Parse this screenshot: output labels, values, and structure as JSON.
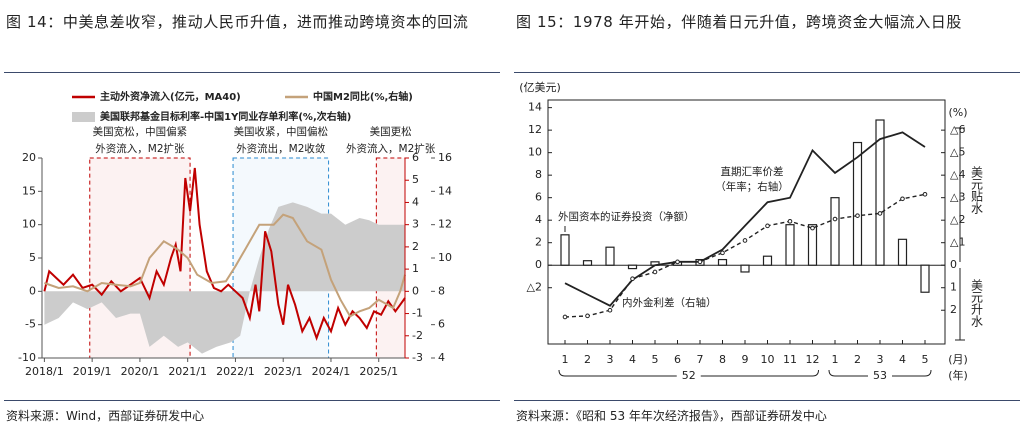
{
  "chart_data": [
    {
      "type": "line",
      "title": "图 14：中美息差收窄，推动人民币升值，进而推动跨境资本的回流",
      "source": "资料来源：Wind，西部证券研发中心",
      "xlim": [
        2017.95,
        2025.55
      ],
      "xticks": [
        {
          "value": 2018,
          "label": "2018/1"
        },
        {
          "value": 2019,
          "label": "2019/1"
        },
        {
          "value": 2020,
          "label": "2020/1"
        },
        {
          "value": 2021,
          "label": "2021/1"
        },
        {
          "value": 2022,
          "label": "2022/1"
        },
        {
          "value": 2023,
          "label": "2023/1"
        },
        {
          "value": 2024,
          "label": "2024/1"
        },
        {
          "value": 2025,
          "label": "2025/1"
        }
      ],
      "ylim": [
        -10,
        20
      ],
      "yticks": [
        -10,
        -5,
        0,
        5,
        10,
        15,
        20
      ],
      "y2lim": [
        4,
        16
      ],
      "y2ticks": [
        4,
        6,
        8,
        10,
        12,
        14,
        16
      ],
      "y3lim": [
        -3,
        6
      ],
      "y3ticks": [
        -3,
        -2,
        -1,
        0,
        1,
        2,
        3,
        4,
        5,
        6
      ],
      "series": [
        {
          "name": "主动外资净流入(亿元，MA40)",
          "color": "#c00000",
          "x": [
            2018.0,
            2018.1,
            2018.25,
            2018.4,
            2018.6,
            2018.8,
            2019.0,
            2019.2,
            2019.4,
            2019.6,
            2019.8,
            2020.0,
            2020.2,
            2020.35,
            2020.5,
            2020.65,
            2020.75,
            2020.85,
            2020.95,
            2021.05,
            2021.15,
            2021.25,
            2021.4,
            2021.55,
            2021.7,
            2021.85,
            2022.0,
            2022.15,
            2022.3,
            2022.42,
            2022.5,
            2022.62,
            2022.75,
            2022.9,
            2023.0,
            2023.1,
            2023.25,
            2023.4,
            2023.55,
            2023.7,
            2023.85,
            2024.0,
            2024.15,
            2024.3,
            2024.45,
            2024.6,
            2024.75,
            2024.9,
            2025.05,
            2025.2,
            2025.35,
            2025.45,
            2025.55
          ],
          "values": [
            0,
            3,
            2,
            1,
            2.5,
            0.5,
            1,
            -0.5,
            1.5,
            0,
            1,
            2,
            -1,
            3,
            1,
            5,
            7,
            3,
            17,
            12,
            18.5,
            10,
            3,
            0.5,
            0,
            1,
            0,
            -1,
            -4,
            1,
            -3,
            9,
            6,
            -2,
            -5,
            1,
            -2,
            -6,
            -4,
            -7,
            -4,
            -6,
            -2.5,
            -5,
            -3,
            -4,
            -5.5,
            -3,
            -3.5,
            -1.5,
            -3,
            -2,
            -1
          ]
        },
        {
          "name": "中国M2同比(%,右轴)",
          "color": "#c4a27a",
          "axis": "y2",
          "x": [
            2018.0,
            2018.3,
            2018.6,
            2018.9,
            2019.2,
            2019.5,
            2019.8,
            2020.0,
            2020.2,
            2020.5,
            2020.8,
            2021.0,
            2021.2,
            2021.5,
            2021.8,
            2022.0,
            2022.2,
            2022.5,
            2022.8,
            2023.0,
            2023.2,
            2023.5,
            2023.8,
            2024.0,
            2024.2,
            2024.4,
            2024.6,
            2024.8,
            2025.0,
            2025.3,
            2025.45,
            2025.55
          ],
          "values": [
            8.5,
            8.2,
            8.3,
            8.0,
            8.5,
            8.4,
            8.3,
            8.5,
            10,
            11,
            10.5,
            10,
            9,
            8.5,
            8.6,
            9.5,
            10.5,
            12,
            12,
            12.6,
            12.4,
            11,
            10.5,
            8.7,
            7.5,
            6.5,
            6.8,
            7.0,
            7.5,
            7.0,
            8.0,
            9.0
          ]
        },
        {
          "name": "美国联邦基金目标利率-中国1Y同业存单利率(%,次右轴)",
          "color": "#cccccc",
          "axis": "y3",
          "type": "area",
          "x": [
            2018.0,
            2018.3,
            2018.6,
            2018.9,
            2019.2,
            2019.5,
            2019.8,
            2020.0,
            2020.2,
            2020.5,
            2020.8,
            2021.0,
            2021.3,
            2021.6,
            2021.9,
            2022.1,
            2022.3,
            2022.5,
            2022.7,
            2022.9,
            2023.2,
            2023.5,
            2023.8,
            2024.0,
            2024.3,
            2024.6,
            2024.8,
            2025.0,
            2025.3,
            2025.55
          ],
          "values": [
            -1.5,
            -1.2,
            -0.5,
            -0.8,
            -0.5,
            -1.2,
            -1.0,
            -1.0,
            -2.5,
            -2.0,
            -2.5,
            -2.3,
            -2.8,
            -2.5,
            -2.3,
            -2.0,
            0,
            1.5,
            2.8,
            3.8,
            4.0,
            3.8,
            3.5,
            3.5,
            3.0,
            3.3,
            3.2,
            3.0,
            3.0,
            3.0
          ]
        }
      ],
      "periods": [
        {
          "start": 2018.95,
          "end": 2021.05,
          "color": "#c00000",
          "label": [
            "美国宽松，中国偏紧",
            "外资流入，M2扩张"
          ]
        },
        {
          "start": 2021.95,
          "end": 2023.95,
          "color": "#2a8ad0",
          "label": [
            "美国收紧，中国偏松",
            "外资流出，M2收敛"
          ]
        },
        {
          "start": 2024.95,
          "end": 2025.55,
          "color": "#c00000",
          "label": [
            "美国更松",
            "外资流入，M2扩张"
          ]
        }
      ]
    },
    {
      "type": "bar",
      "title": "图 15：1978 年开始，伴随着日元升值，跨境资金大幅流入日股",
      "source": "资料来源：《昭和 53 年年次经济报告》，西部证券研发中心",
      "categories": [
        "1",
        "2",
        "3",
        "4",
        "5",
        "6",
        "7",
        "8",
        "9",
        "10",
        "11",
        "12",
        "1",
        "2",
        "3",
        "4",
        "5"
      ],
      "groups": [
        "52",
        "53"
      ],
      "x_unit": "(月)",
      "group_unit": "(年)",
      "y_label": "(亿美元)",
      "y2_label": "(%)",
      "ylim": [
        -7,
        14.5
      ],
      "yticks": [
        {
          "value": -2,
          "label": "△2"
        },
        0,
        2,
        4,
        6,
        8,
        10,
        12,
        14
      ],
      "y2lim": [
        3.5,
        -7.25
      ],
      "y2ticks": [
        {
          "value": -6,
          "label": "△6"
        },
        {
          "value": -5,
          "label": "△5"
        },
        {
          "value": -4,
          "label": "△4"
        },
        {
          "value": -3,
          "label": "△3"
        },
        {
          "value": -2,
          "label": "△2"
        },
        {
          "value": -1,
          "label": "△1"
        },
        0,
        1,
        2
      ],
      "side_labels": [
        "美元贴水",
        "美元升水"
      ],
      "series": [
        {
          "name": "外国资本的证券投资（净额）",
          "type": "bar",
          "color": "#222222",
          "values": [
            2.7,
            0.4,
            1.6,
            -0.3,
            0.3,
            0.3,
            0.5,
            0.5,
            -0.6,
            0.8,
            3.6,
            3.6,
            6.0,
            10.9,
            12.9,
            2.3,
            -2.4
          ]
        },
        {
          "name": [
            "直期汇率价差",
            "（年率；右轴）"
          ],
          "type": "line",
          "axis": "y2",
          "color": "#222222",
          "values": [
            0.8,
            1.3,
            1.8,
            0.65,
            0,
            -0.15,
            -0.15,
            -0.7,
            -1.75,
            -2.8,
            -3.0,
            -5.1,
            -4.1,
            -4.8,
            -5.6,
            -5.9,
            -5.25
          ]
        },
        {
          "name": "内外金利差（右轴）",
          "type": "dashed",
          "axis": "y2",
          "color": "#222222",
          "values": [
            2.3,
            2.25,
            2.0,
            0.6,
            0.3,
            -0.15,
            -0.15,
            -0.55,
            -1.1,
            -1.75,
            -1.95,
            -1.65,
            -2.05,
            -2.2,
            -2.3,
            -2.95,
            -3.15
          ]
        }
      ]
    }
  ]
}
